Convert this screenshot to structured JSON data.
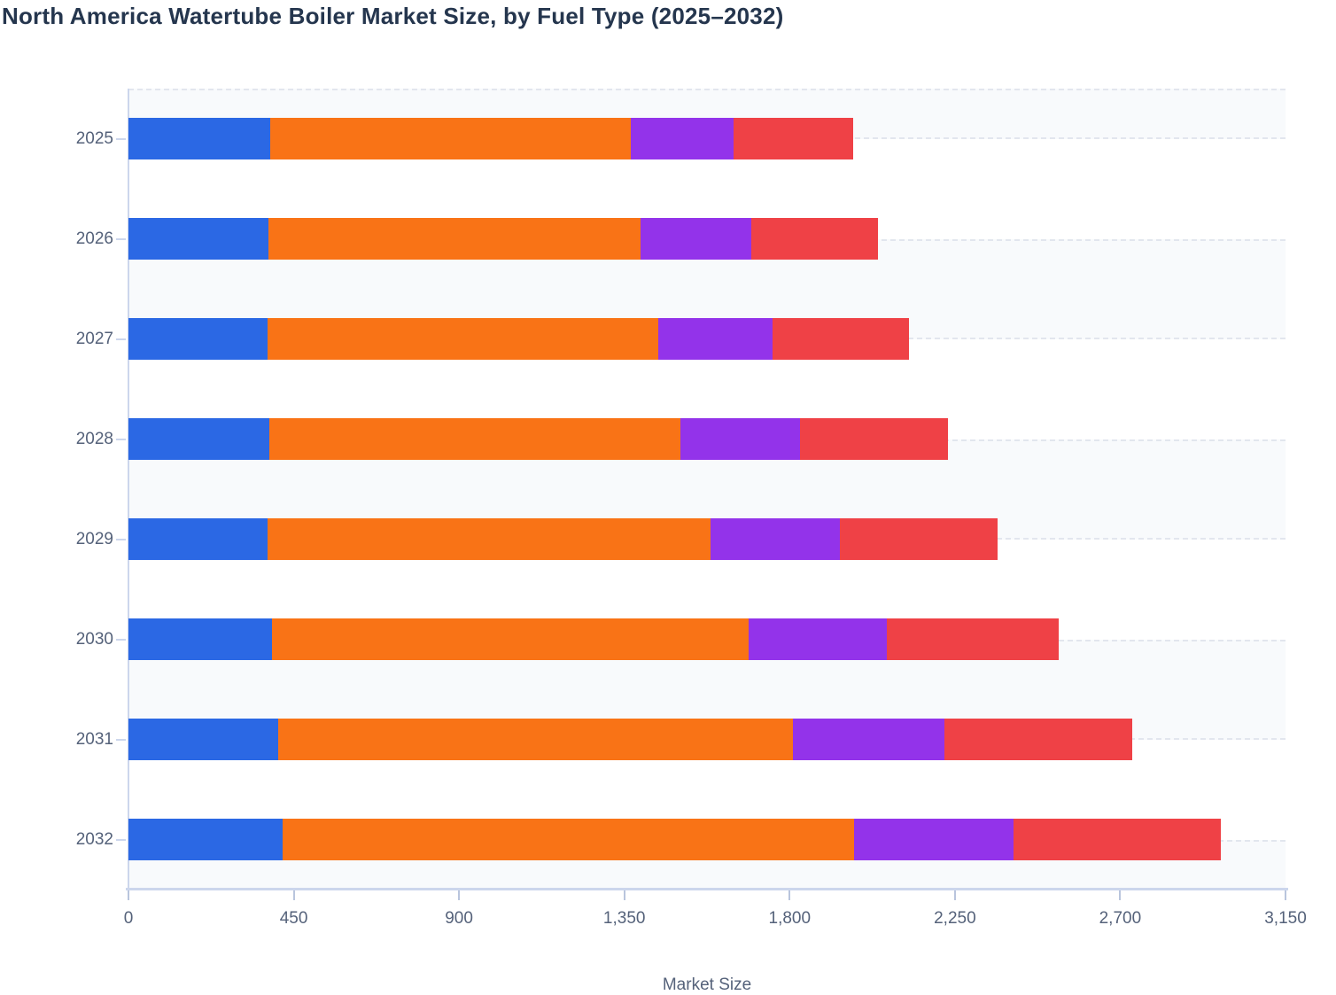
{
  "title": "North America Watertube Boiler Market Size, by Fuel Type (2025–2032)",
  "colors": {
    "title_text": "#25364e",
    "axis_text": "#55627a",
    "axis_spine": "#ccd6ec",
    "stripe_fill": "#f8fafc",
    "stripe_border": "#e2e6ee"
  },
  "chart_data": {
    "type": "bar",
    "orientation": "horizontal",
    "stacked": true,
    "title": "North America Watertube Boiler Market Size, by Fuel Type (2025–2032)",
    "xlabel": "Market Size",
    "ylabel": "",
    "categories": [
      "2025",
      "2026",
      "2027",
      "2028",
      "2029",
      "2030",
      "2031",
      "2032"
    ],
    "series": [
      {
        "name": "blue",
        "color": "#2b68e4",
        "values": [
          385,
          380,
          378,
          383,
          378,
          390,
          408,
          420
        ]
      },
      {
        "name": "orange",
        "color": "#f97316",
        "values": [
          982,
          1013,
          1065,
          1119,
          1207,
          1298,
          1400,
          1556
        ]
      },
      {
        "name": "purple",
        "color": "#9333ea",
        "values": [
          280,
          303,
          310,
          327,
          352,
          377,
          414,
          434
        ]
      },
      {
        "name": "red",
        "color": "#ef4146",
        "values": [
          326,
          345,
          373,
          401,
          430,
          468,
          510,
          563
        ]
      }
    ],
    "totals": [
      1973,
      2041,
      2126,
      2230,
      2367,
      2533,
      2732,
      2973
    ],
    "xlim": [
      0,
      3150
    ],
    "x_ticks": [
      {
        "label": "0",
        "value": 0
      },
      {
        "label": "450",
        "value": 450
      },
      {
        "label": "900",
        "value": 900
      },
      {
        "label": "1,350",
        "value": 1350
      },
      {
        "label": "1,800",
        "value": 1800
      },
      {
        "label": "2,250",
        "value": 2250
      },
      {
        "label": "2,700",
        "value": 2700
      },
      {
        "label": "3,150",
        "value": 3150
      }
    ],
    "grid": "dashed horizontal zebra stripes",
    "legend_position": "below chart (cut off, not visible)"
  }
}
